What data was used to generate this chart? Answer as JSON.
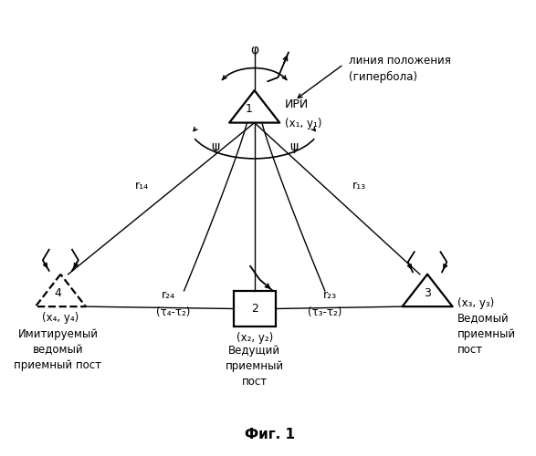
{
  "title": "Фиг. 1",
  "bg_color": "#ffffff",
  "fig_width": 5.87,
  "fig_height": 5.0,
  "n1x": 0.47,
  "n1y": 0.76,
  "n2x": 0.47,
  "n2y": 0.32,
  "n3x": 0.8,
  "n3y": 0.35,
  "n4x": 0.1,
  "n4y": 0.35,
  "label1": "1",
  "label1b": "ИРИ",
  "label1c": "(x₁, y₁)",
  "label2": "2",
  "label2b": "(x₂, y₂)",
  "label2c": "Ведущий\nприемный\nпост",
  "label3": "3",
  "label3b": "(x₃, y₃)",
  "label3c": "Ведомый\nприемный\nпост",
  "label4": "4",
  "label4b": "(x₄, y₄)",
  "label4c": "Имитируемый\nведомый\nприемный пост",
  "r14_label": "r₁₄",
  "r13_label": "r₁₃",
  "r24_label": "r₂₄",
  "r24_sub": "(τ₄-τ₂)",
  "r23_label": "r₂₃",
  "r23_sub": "(τ₃-τ₂)",
  "phi_label": "φ",
  "psi_label": "ψ",
  "hyp_label": "линия положения\n(гипербола)"
}
